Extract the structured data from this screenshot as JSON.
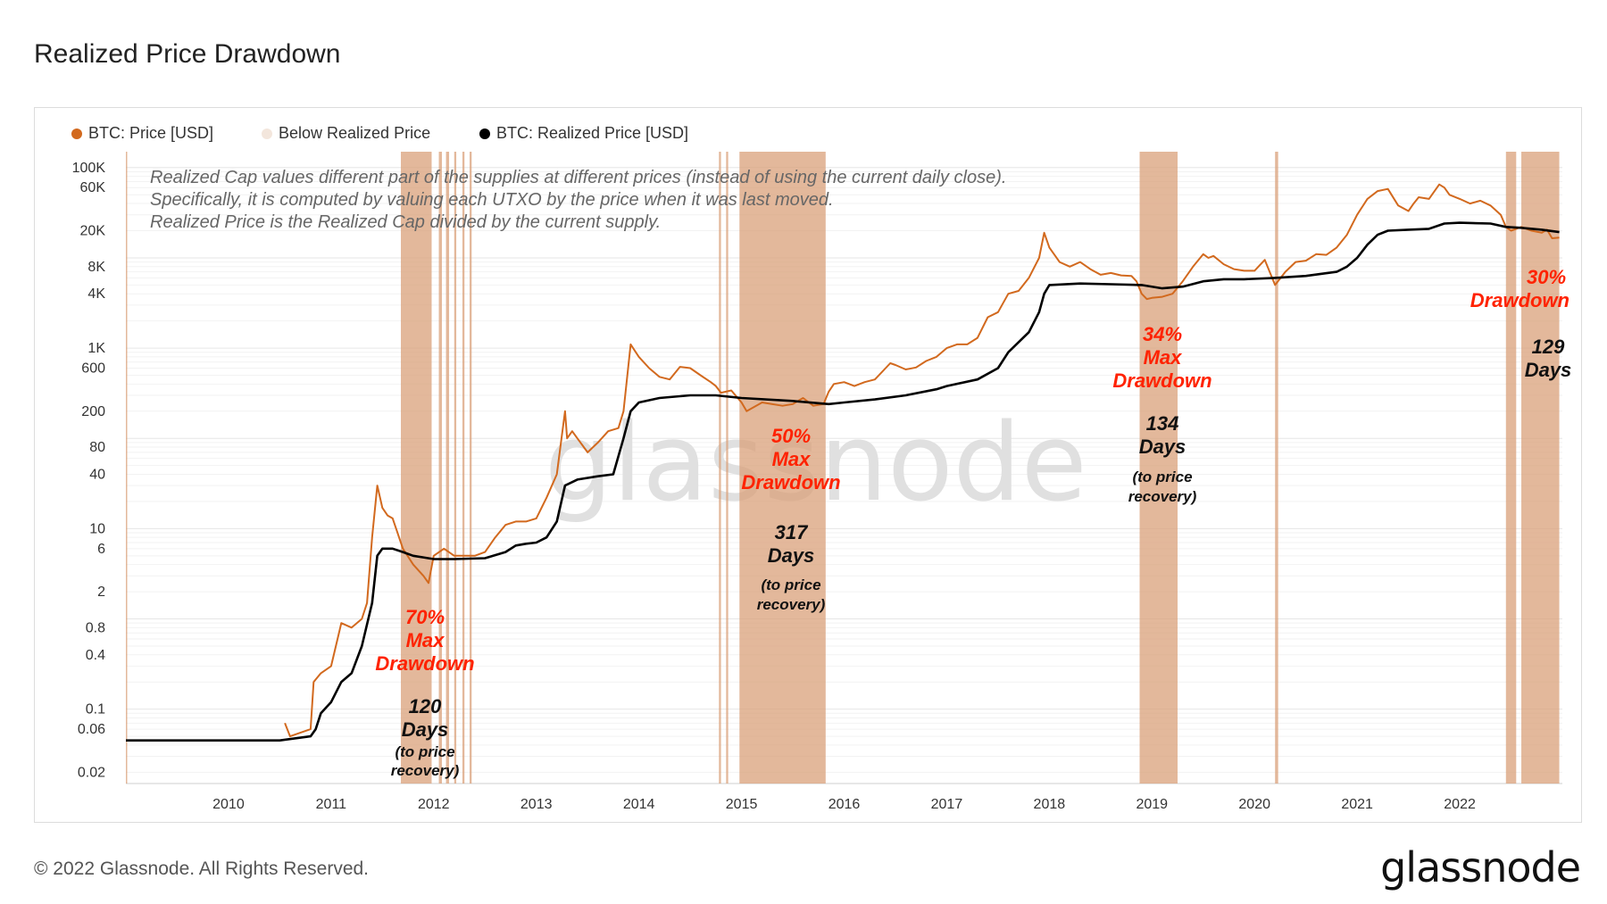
{
  "title": "Realized Price Drawdown",
  "footer": {
    "copyright": "© 2022 Glassnode. All Rights Reserved.",
    "logo": "glassnode"
  },
  "watermark": "glassnode",
  "colors": {
    "price": "#d2691e",
    "realized": "#000000",
    "below": "#d9a07a",
    "annotation_red": "#ff2200"
  },
  "legend": [
    {
      "label": "BTC: Price [USD]",
      "color": "#d2691e"
    },
    {
      "label": "Below Realized Price",
      "color": "#f3e6dc"
    },
    {
      "label": "BTC: Realized Price [USD]",
      "color": "#000000"
    }
  ],
  "notes": [
    "Realized Cap values different part of the supplies at different prices (instead of using the current daily close).",
    "Specifically, it is computed by valuing each UTXO by the price when it was last moved.",
    "Realized Price is the Realized Cap divided by the current supply."
  ],
  "annotations": [
    {
      "drawdown": [
        "70%",
        "Max",
        "Drawdown"
      ],
      "days": [
        "120",
        "Days"
      ],
      "note": [
        "(to price",
        "recovery)"
      ]
    },
    {
      "drawdown": [
        "50%",
        "Max",
        "Drawdown"
      ],
      "days": [
        "317",
        "Days"
      ],
      "note": [
        "(to price",
        "recovery)"
      ]
    },
    {
      "drawdown": [
        "34%",
        "Max",
        "Drawdown"
      ],
      "days": [
        "134",
        "Days"
      ],
      "note": [
        "(to price",
        "recovery)"
      ]
    },
    {
      "drawdown": [
        "30%",
        "Drawdown"
      ],
      "days": [
        "129",
        "Days"
      ],
      "note": []
    }
  ],
  "chart_data": {
    "type": "line",
    "scale": "log",
    "title": "Realized Price Drawdown",
    "xlabel": "",
    "ylabel": "",
    "xlim": [
      2009.0,
      2023.0
    ],
    "ylim": [
      0.015,
      150000
    ],
    "x_ticks": [
      "2010",
      "2011",
      "2012",
      "2013",
      "2014",
      "2015",
      "2016",
      "2017",
      "2018",
      "2019",
      "2020",
      "2021",
      "2022"
    ],
    "y_ticks": [
      {
        "label": "100K",
        "value": 100000
      },
      {
        "label": "60K",
        "value": 60000
      },
      {
        "label": "20K",
        "value": 20000
      },
      {
        "label": "8K",
        "value": 8000
      },
      {
        "label": "4K",
        "value": 4000
      },
      {
        "label": "1K",
        "value": 1000
      },
      {
        "label": "600",
        "value": 600
      },
      {
        "label": "200",
        "value": 200
      },
      {
        "label": "80",
        "value": 80
      },
      {
        "label": "40",
        "value": 40
      },
      {
        "label": "10",
        "value": 10
      },
      {
        "label": "6",
        "value": 6
      },
      {
        "label": "2",
        "value": 2
      },
      {
        "label": "0.8",
        "value": 0.8
      },
      {
        "label": "0.4",
        "value": 0.4
      },
      {
        "label": "0.1",
        "value": 0.1
      },
      {
        "label": "0.06",
        "value": 0.06
      },
      {
        "label": "0.02",
        "value": 0.02
      }
    ],
    "series": [
      {
        "name": "BTC: Price [USD]",
        "points": [
          [
            2010.55,
            0.07
          ],
          [
            2010.6,
            0.05
          ],
          [
            2010.8,
            0.06
          ],
          [
            2010.83,
            0.2
          ],
          [
            2010.9,
            0.25
          ],
          [
            2011.0,
            0.3
          ],
          [
            2011.1,
            0.9
          ],
          [
            2011.2,
            0.8
          ],
          [
            2011.3,
            1.0
          ],
          [
            2011.35,
            1.5
          ],
          [
            2011.4,
            8
          ],
          [
            2011.45,
            30
          ],
          [
            2011.5,
            17
          ],
          [
            2011.55,
            14
          ],
          [
            2011.6,
            13
          ],
          [
            2011.7,
            6
          ],
          [
            2011.8,
            4
          ],
          [
            2011.9,
            3
          ],
          [
            2011.95,
            2.5
          ],
          [
            2012.0,
            5
          ],
          [
            2012.1,
            6
          ],
          [
            2012.2,
            5
          ],
          [
            2012.3,
            5
          ],
          [
            2012.4,
            5
          ],
          [
            2012.5,
            5.5
          ],
          [
            2012.6,
            8
          ],
          [
            2012.7,
            11
          ],
          [
            2012.8,
            12
          ],
          [
            2012.9,
            12
          ],
          [
            2013.0,
            13
          ],
          [
            2013.1,
            22
          ],
          [
            2013.2,
            40
          ],
          [
            2013.28,
            200
          ],
          [
            2013.3,
            100
          ],
          [
            2013.35,
            120
          ],
          [
            2013.4,
            100
          ],
          [
            2013.5,
            70
          ],
          [
            2013.6,
            90
          ],
          [
            2013.7,
            120
          ],
          [
            2013.8,
            130
          ],
          [
            2013.85,
            200
          ],
          [
            2013.92,
            1100
          ],
          [
            2014.0,
            800
          ],
          [
            2014.1,
            600
          ],
          [
            2014.2,
            480
          ],
          [
            2014.3,
            450
          ],
          [
            2014.4,
            620
          ],
          [
            2014.5,
            600
          ],
          [
            2014.6,
            500
          ],
          [
            2014.7,
            420
          ],
          [
            2014.75,
            380
          ],
          [
            2014.8,
            320
          ],
          [
            2014.9,
            340
          ],
          [
            2015.0,
            250
          ],
          [
            2015.05,
            200
          ],
          [
            2015.2,
            250
          ],
          [
            2015.4,
            230
          ],
          [
            2015.5,
            240
          ],
          [
            2015.6,
            280
          ],
          [
            2015.7,
            230
          ],
          [
            2015.8,
            240
          ],
          [
            2015.85,
            330
          ],
          [
            2015.9,
            400
          ],
          [
            2016.0,
            420
          ],
          [
            2016.1,
            380
          ],
          [
            2016.2,
            420
          ],
          [
            2016.3,
            450
          ],
          [
            2016.45,
            680
          ],
          [
            2016.5,
            650
          ],
          [
            2016.6,
            580
          ],
          [
            2016.7,
            610
          ],
          [
            2016.8,
            720
          ],
          [
            2016.9,
            800
          ],
          [
            2017.0,
            1000
          ],
          [
            2017.1,
            1100
          ],
          [
            2017.2,
            1100
          ],
          [
            2017.3,
            1300
          ],
          [
            2017.4,
            2200
          ],
          [
            2017.5,
            2500
          ],
          [
            2017.6,
            4000
          ],
          [
            2017.7,
            4300
          ],
          [
            2017.8,
            6000
          ],
          [
            2017.9,
            10000
          ],
          [
            2017.95,
            19000
          ],
          [
            2018.0,
            13000
          ],
          [
            2018.1,
            9000
          ],
          [
            2018.2,
            8000
          ],
          [
            2018.3,
            9000
          ],
          [
            2018.4,
            7500
          ],
          [
            2018.5,
            6500
          ],
          [
            2018.6,
            6800
          ],
          [
            2018.7,
            6400
          ],
          [
            2018.8,
            6300
          ],
          [
            2018.85,
            5500
          ],
          [
            2018.9,
            4000
          ],
          [
            2018.95,
            3500
          ],
          [
            2019.0,
            3600
          ],
          [
            2019.1,
            3700
          ],
          [
            2019.2,
            4000
          ],
          [
            2019.3,
            5500
          ],
          [
            2019.4,
            8000
          ],
          [
            2019.5,
            11000
          ],
          [
            2019.55,
            10000
          ],
          [
            2019.6,
            10500
          ],
          [
            2019.7,
            8500
          ],
          [
            2019.8,
            7500
          ],
          [
            2019.9,
            7200
          ],
          [
            2020.0,
            7200
          ],
          [
            2020.1,
            9500
          ],
          [
            2020.2,
            5000
          ],
          [
            2020.3,
            7000
          ],
          [
            2020.4,
            9000
          ],
          [
            2020.5,
            9300
          ],
          [
            2020.6,
            11000
          ],
          [
            2020.7,
            10800
          ],
          [
            2020.8,
            13000
          ],
          [
            2020.9,
            18000
          ],
          [
            2021.0,
            30000
          ],
          [
            2021.1,
            45000
          ],
          [
            2021.2,
            55000
          ],
          [
            2021.3,
            58000
          ],
          [
            2021.4,
            38000
          ],
          [
            2021.5,
            33000
          ],
          [
            2021.55,
            40000
          ],
          [
            2021.6,
            47000
          ],
          [
            2021.7,
            45000
          ],
          [
            2021.8,
            65000
          ],
          [
            2021.85,
            60000
          ],
          [
            2021.9,
            50000
          ],
          [
            2022.0,
            45000
          ],
          [
            2022.1,
            40000
          ],
          [
            2022.2,
            43000
          ],
          [
            2022.3,
            38000
          ],
          [
            2022.4,
            30000
          ],
          [
            2022.45,
            22000
          ],
          [
            2022.5,
            20000
          ],
          [
            2022.6,
            22000
          ],
          [
            2022.7,
            20000
          ],
          [
            2022.8,
            19000
          ],
          [
            2022.85,
            20500
          ],
          [
            2022.9,
            16500
          ],
          [
            2022.97,
            16800
          ]
        ]
      },
      {
        "name": "BTC: Realized Price [USD]",
        "points": [
          [
            2009.0,
            0.045
          ],
          [
            2010.0,
            0.045
          ],
          [
            2010.5,
            0.045
          ],
          [
            2010.8,
            0.05
          ],
          [
            2010.85,
            0.06
          ],
          [
            2010.9,
            0.09
          ],
          [
            2011.0,
            0.12
          ],
          [
            2011.1,
            0.2
          ],
          [
            2011.2,
            0.25
          ],
          [
            2011.3,
            0.5
          ],
          [
            2011.4,
            1.5
          ],
          [
            2011.45,
            5
          ],
          [
            2011.5,
            6
          ],
          [
            2011.6,
            6
          ],
          [
            2011.7,
            5.5
          ],
          [
            2011.8,
            5
          ],
          [
            2011.9,
            4.8
          ],
          [
            2012.0,
            4.6
          ],
          [
            2012.2,
            4.6
          ],
          [
            2012.5,
            4.7
          ],
          [
            2012.7,
            5.5
          ],
          [
            2012.8,
            6.5
          ],
          [
            2012.9,
            6.8
          ],
          [
            2013.0,
            7
          ],
          [
            2013.1,
            8
          ],
          [
            2013.2,
            12
          ],
          [
            2013.28,
            30
          ],
          [
            2013.4,
            35
          ],
          [
            2013.6,
            38
          ],
          [
            2013.75,
            40
          ],
          [
            2013.85,
            100
          ],
          [
            2013.92,
            200
          ],
          [
            2014.0,
            250
          ],
          [
            2014.2,
            280
          ],
          [
            2014.5,
            300
          ],
          [
            2014.75,
            300
          ],
          [
            2015.0,
            280
          ],
          [
            2015.5,
            260
          ],
          [
            2015.85,
            240
          ],
          [
            2016.0,
            250
          ],
          [
            2016.3,
            270
          ],
          [
            2016.6,
            300
          ],
          [
            2016.9,
            350
          ],
          [
            2017.0,
            380
          ],
          [
            2017.3,
            450
          ],
          [
            2017.5,
            600
          ],
          [
            2017.6,
            900
          ],
          [
            2017.8,
            1500
          ],
          [
            2017.9,
            2500
          ],
          [
            2017.95,
            4000
          ],
          [
            2018.0,
            5000
          ],
          [
            2018.3,
            5200
          ],
          [
            2018.6,
            5100
          ],
          [
            2018.9,
            5000
          ],
          [
            2019.1,
            4600
          ],
          [
            2019.3,
            4800
          ],
          [
            2019.5,
            5500
          ],
          [
            2019.7,
            5800
          ],
          [
            2019.9,
            5800
          ],
          [
            2020.2,
            6000
          ],
          [
            2020.5,
            6300
          ],
          [
            2020.8,
            7000
          ],
          [
            2020.9,
            8000
          ],
          [
            2021.0,
            10000
          ],
          [
            2021.1,
            14000
          ],
          [
            2021.2,
            18000
          ],
          [
            2021.3,
            20000
          ],
          [
            2021.5,
            20500
          ],
          [
            2021.7,
            21000
          ],
          [
            2021.85,
            24000
          ],
          [
            2022.0,
            24500
          ],
          [
            2022.3,
            24000
          ],
          [
            2022.45,
            22000
          ],
          [
            2022.6,
            21500
          ],
          [
            2022.8,
            20500
          ],
          [
            2022.97,
            19300
          ]
        ]
      }
    ],
    "below_realized_periods": [
      [
        2011.68,
        2011.98
      ],
      [
        2012.05,
        2012.08
      ],
      [
        2012.12,
        2012.15
      ],
      [
        2012.2,
        2012.22
      ],
      [
        2012.28,
        2012.3
      ],
      [
        2012.35,
        2012.37
      ],
      [
        2014.78,
        2014.8
      ],
      [
        2014.85,
        2014.87
      ],
      [
        2014.98,
        2015.82
      ],
      [
        2018.88,
        2019.25
      ],
      [
        2020.2,
        2020.23
      ],
      [
        2022.45,
        2022.55
      ],
      [
        2022.6,
        2022.97
      ]
    ]
  }
}
